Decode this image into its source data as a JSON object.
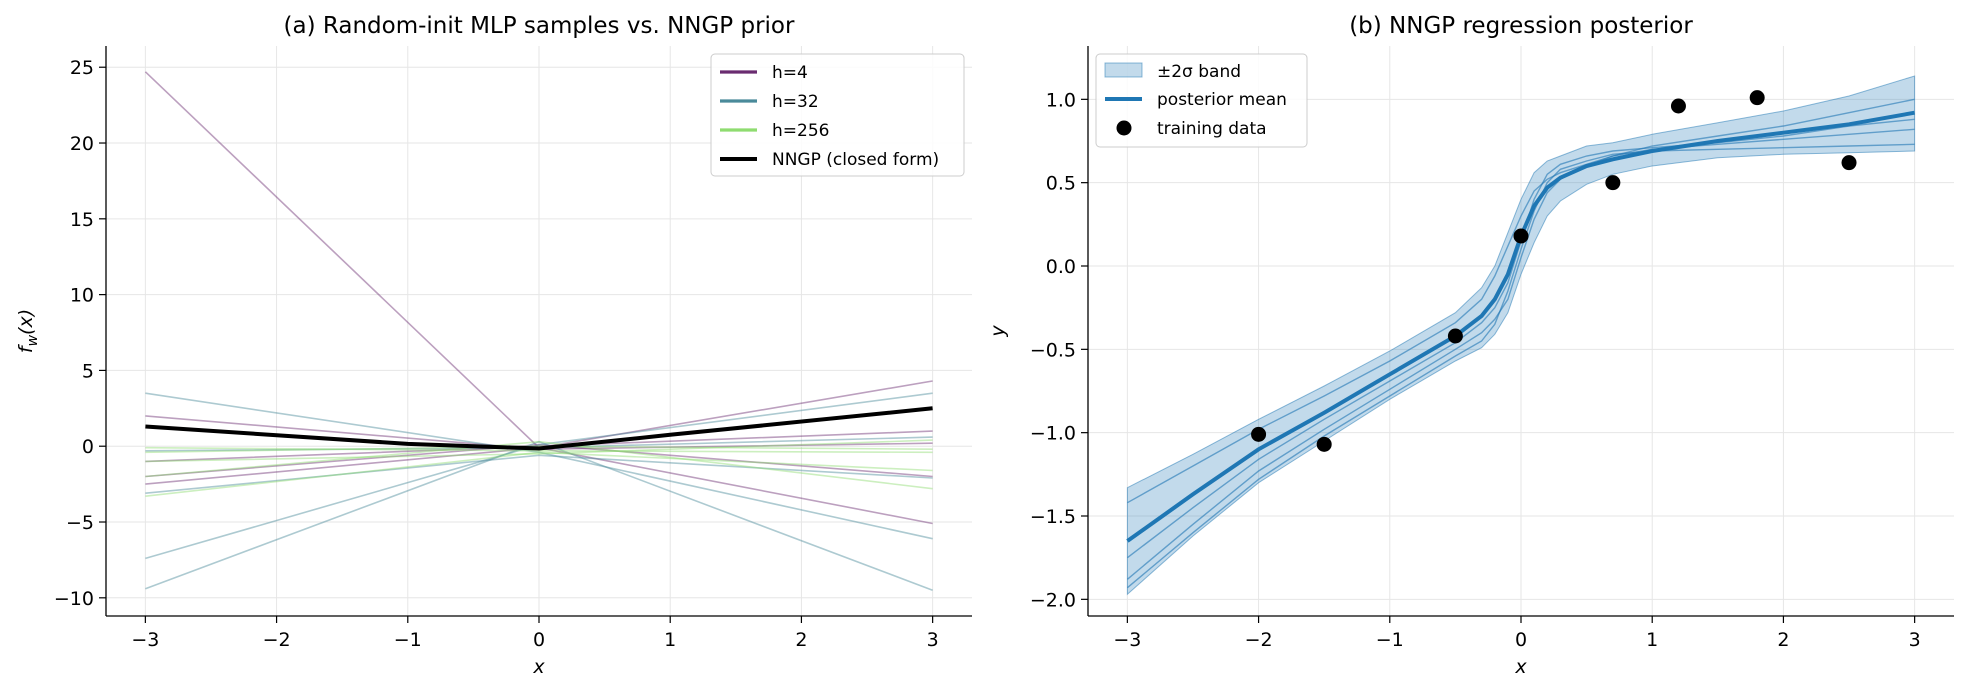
{
  "chart_data": [
    {
      "type": "line",
      "title": "(a) Random-init MLP samples vs. NNGP prior",
      "xlabel": "x",
      "ylabel": "f_w(x)",
      "xlim": [
        -3.3,
        3.3
      ],
      "ylim": [
        -11.2,
        26.4
      ],
      "xticks": [
        -3,
        -2,
        -1,
        0,
        1,
        2,
        3
      ],
      "yticks": [
        -10,
        -5,
        0,
        5,
        10,
        15,
        20,
        25
      ],
      "xtick_labels": [
        "−3",
        "−2",
        "−1",
        "0",
        "1",
        "2",
        "3"
      ],
      "ytick_labels": [
        "−10",
        "−5",
        "0",
        "5",
        "10",
        "15",
        "20",
        "25"
      ],
      "grid": true,
      "legend_position": "top-right",
      "legend": [
        {
          "label": "h=4",
          "color": "#6a2c70"
        },
        {
          "label": "h=32",
          "color": "#4a8a9a"
        },
        {
          "label": "h=256",
          "color": "#8fdc70"
        },
        {
          "label": "NNGP (closed form)",
          "color": "#000000"
        }
      ],
      "series": [
        {
          "group": "h=4",
          "color": "#6a2c70",
          "points": [
            [
              -3,
              24.7
            ],
            [
              0,
              -0.1
            ],
            [
              3,
              -5.1
            ]
          ]
        },
        {
          "group": "h=4",
          "color": "#6a2c70",
          "points": [
            [
              -3,
              2.0
            ],
            [
              0,
              -0.2
            ],
            [
              3,
              0.2
            ]
          ]
        },
        {
          "group": "h=4",
          "color": "#6a2c70",
          "points": [
            [
              -3,
              -2.5
            ],
            [
              0,
              -0.1
            ],
            [
              3,
              4.3
            ]
          ]
        },
        {
          "group": "h=4",
          "color": "#6a2c70",
          "points": [
            [
              -3,
              -2.0
            ],
            [
              0,
              0.1
            ],
            [
              3,
              -2.0
            ]
          ]
        },
        {
          "group": "h=4",
          "color": "#6a2c70",
          "points": [
            [
              -3,
              -1.0
            ],
            [
              0,
              0.0
            ],
            [
              3,
              1.0
            ]
          ]
        },
        {
          "group": "h=32",
          "color": "#4a8a9a",
          "points": [
            [
              -3,
              3.5
            ],
            [
              0,
              -0.4
            ],
            [
              3,
              -6.1
            ]
          ]
        },
        {
          "group": "h=32",
          "color": "#4a8a9a",
          "points": [
            [
              -3,
              -7.4
            ],
            [
              0,
              0.1
            ],
            [
              3,
              3.5
            ]
          ]
        },
        {
          "group": "h=32",
          "color": "#4a8a9a",
          "points": [
            [
              -3,
              -9.4
            ],
            [
              0,
              0.3
            ],
            [
              3,
              -9.5
            ]
          ]
        },
        {
          "group": "h=32",
          "color": "#4a8a9a",
          "points": [
            [
              -3,
              -0.3
            ],
            [
              0,
              -0.1
            ],
            [
              3,
              0.6
            ]
          ]
        },
        {
          "group": "h=32",
          "color": "#4a8a9a",
          "points": [
            [
              -3,
              -3.1
            ],
            [
              0,
              -0.6
            ],
            [
              3,
              -2.1
            ]
          ]
        },
        {
          "group": "h=256",
          "color": "#8fdc70",
          "points": [
            [
              -3,
              -0.4
            ],
            [
              0,
              0.0
            ],
            [
              3,
              -0.2
            ]
          ]
        },
        {
          "group": "h=256",
          "color": "#8fdc70",
          "points": [
            [
              -3,
              -3.3
            ],
            [
              0,
              -0.4
            ],
            [
              3,
              -1.6
            ]
          ]
        },
        {
          "group": "h=256",
          "color": "#8fdc70",
          "points": [
            [
              -3,
              -2.0
            ],
            [
              0,
              0.3
            ],
            [
              3,
              -2.8
            ]
          ]
        },
        {
          "group": "h=256",
          "color": "#8fdc70",
          "points": [
            [
              -3,
              -0.1
            ],
            [
              0,
              -0.3
            ],
            [
              3,
              -0.4
            ]
          ]
        },
        {
          "group": "h=256",
          "color": "#8fdc70",
          "points": [
            [
              -3,
              -1.0
            ],
            [
              0,
              -0.5
            ],
            [
              3,
              0.4
            ]
          ]
        },
        {
          "group": "NNGP (closed form)",
          "color": "#000000",
          "points": [
            [
              -3,
              1.3
            ],
            [
              -1,
              0.15
            ],
            [
              0,
              -0.15
            ],
            [
              1,
              0.75
            ],
            [
              3,
              2.5
            ]
          ]
        }
      ]
    },
    {
      "type": "line",
      "title": "(b) NNGP regression posterior",
      "xlabel": "x",
      "ylabel": "y",
      "xlim": [
        -3.3,
        3.3
      ],
      "ylim": [
        -2.1,
        1.32
      ],
      "xticks": [
        -3,
        -2,
        -1,
        0,
        1,
        2,
        3
      ],
      "yticks": [
        -2.0,
        -1.5,
        -1.0,
        -0.5,
        0.0,
        0.5,
        1.0
      ],
      "xtick_labels": [
        "−3",
        "−2",
        "−1",
        "0",
        "1",
        "2",
        "3"
      ],
      "ytick_labels": [
        "−2.0",
        "−1.5",
        "−1.0",
        "−0.5",
        "0.0",
        "0.5",
        "1.0"
      ],
      "grid": true,
      "legend_position": "top-left",
      "legend": [
        {
          "label": "±2σ band",
          "color": "#1f77b4"
        },
        {
          "label": "posterior mean",
          "color": "#1f77b4"
        },
        {
          "label": "training data",
          "color": "#000000"
        }
      ],
      "x": [
        -3,
        -2.5,
        -2,
        -1.5,
        -1,
        -0.5,
        -0.3,
        -0.2,
        -0.1,
        0,
        0.1,
        0.2,
        0.3,
        0.5,
        0.7,
        1,
        1.5,
        2,
        2.5,
        3
      ],
      "mean": [
        -1.65,
        -1.37,
        -1.1,
        -0.88,
        -0.65,
        -0.42,
        -0.3,
        -0.2,
        -0.05,
        0.18,
        0.36,
        0.47,
        0.53,
        0.6,
        0.64,
        0.69,
        0.75,
        0.8,
        0.85,
        0.92
      ],
      "upper": [
        -1.33,
        -1.13,
        -0.92,
        -0.72,
        -0.51,
        -0.28,
        -0.13,
        0.0,
        0.2,
        0.4,
        0.56,
        0.63,
        0.66,
        0.72,
        0.74,
        0.79,
        0.86,
        0.93,
        1.02,
        1.14
      ],
      "lower": [
        -1.97,
        -1.62,
        -1.3,
        -1.05,
        -0.8,
        -0.57,
        -0.49,
        -0.41,
        -0.28,
        -0.05,
        0.14,
        0.3,
        0.39,
        0.49,
        0.55,
        0.6,
        0.65,
        0.67,
        0.68,
        0.69
      ],
      "samples": [
        [
          -1.42,
          -1.2,
          -0.98,
          -0.78,
          -0.57,
          -0.34,
          -0.2,
          -0.06,
          0.12,
          0.3,
          0.45,
          0.52,
          0.56,
          0.61,
          0.66,
          0.7,
          0.73,
          0.76,
          0.79,
          0.82
        ],
        [
          -1.75,
          -1.45,
          -1.16,
          -0.92,
          -0.69,
          -0.46,
          -0.34,
          -0.25,
          -0.1,
          0.15,
          0.4,
          0.55,
          0.61,
          0.66,
          0.69,
          0.71,
          0.74,
          0.78,
          0.84,
          0.88
        ],
        [
          -1.88,
          -1.55,
          -1.23,
          -0.98,
          -0.74,
          -0.5,
          -0.4,
          -0.32,
          -0.2,
          0.05,
          0.28,
          0.44,
          0.52,
          0.6,
          0.66,
          0.72,
          0.78,
          0.84,
          0.92,
          1.0
        ],
        [
          -1.93,
          -1.6,
          -1.28,
          -1.02,
          -0.78,
          -0.54,
          -0.45,
          -0.35,
          -0.15,
          0.1,
          0.33,
          0.5,
          0.58,
          0.63,
          0.67,
          0.69,
          0.7,
          0.71,
          0.72,
          0.73
        ]
      ],
      "training_data": [
        [
          -2,
          -1.01
        ],
        [
          -1.5,
          -1.07
        ],
        [
          -0.5,
          -0.42
        ],
        [
          0,
          0.18
        ],
        [
          0.7,
          0.5
        ],
        [
          1.2,
          0.96
        ],
        [
          1.8,
          1.01
        ],
        [
          2.5,
          0.62
        ]
      ]
    }
  ]
}
